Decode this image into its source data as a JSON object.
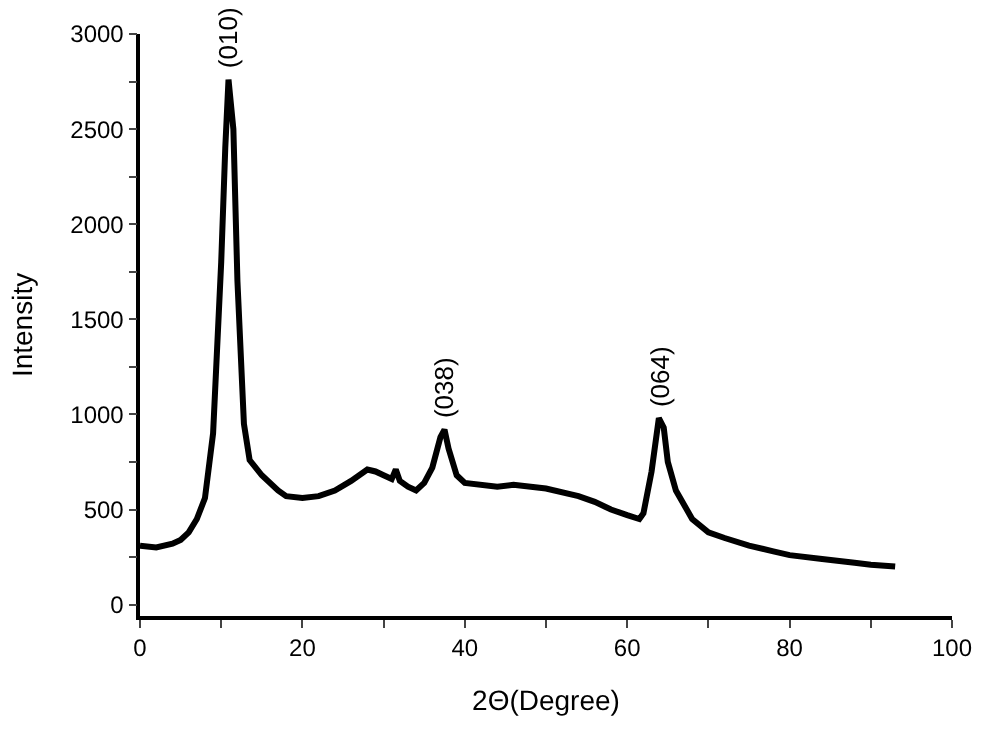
{
  "chart_data": {
    "type": "line",
    "xlabel": "2Θ(Degree)",
    "ylabel": "Intensity",
    "series": [
      {
        "color": "#000000",
        "x": [
          0,
          2,
          4,
          5,
          6,
          7,
          8,
          9,
          10,
          10.5,
          10.9,
          11.5,
          12,
          12.8,
          13.5,
          15,
          17,
          18,
          20,
          22,
          24,
          26,
          28,
          29,
          30,
          31,
          31.5,
          32,
          33,
          34,
          35,
          36,
          37,
          37.5,
          38,
          39,
          40,
          44,
          46,
          50,
          54,
          56,
          58,
          60,
          61.5,
          62,
          63,
          63.9,
          64.5,
          65,
          66,
          68,
          70,
          72,
          75,
          78,
          80,
          84,
          88,
          90,
          93
        ],
        "values": [
          310,
          300,
          320,
          340,
          380,
          450,
          560,
          900,
          1800,
          2400,
          2760,
          2500,
          1700,
          950,
          760,
          680,
          600,
          570,
          560,
          570,
          600,
          650,
          710,
          700,
          680,
          660,
          710,
          650,
          620,
          600,
          640,
          720,
          880,
          920,
          820,
          680,
          640,
          620,
          630,
          610,
          570,
          540,
          500,
          470,
          450,
          480,
          700,
          980,
          930,
          750,
          600,
          450,
          380,
          350,
          310,
          280,
          260,
          240,
          220,
          210,
          200
        ]
      }
    ],
    "annotations": [
      {
        "text": "(010)",
        "x": 10.9,
        "y": 2760
      },
      {
        "text": "(038)",
        "x": 37.5,
        "y": 920
      },
      {
        "text": "(064)",
        "x": 63.9,
        "y": 980
      }
    ],
    "xlim": [
      0,
      100
    ],
    "xticks": [
      0,
      {
        "value": 10,
        "label": null
      },
      20,
      {
        "value": 30,
        "label": null
      },
      40,
      {
        "value": 50,
        "label": null
      },
      60,
      {
        "value": 70,
        "label": null
      },
      80,
      {
        "value": 90,
        "label": null
      },
      100
    ],
    "ylim": [
      -60,
      3000
    ],
    "yticks": [
      0,
      {
        "value": 250,
        "label": null
      },
      500,
      {
        "value": 750,
        "label": null
      },
      1000,
      {
        "value": 1250,
        "label": null
      },
      1500,
      {
        "value": 1750,
        "label": null
      },
      2000,
      {
        "value": 2250,
        "label": null
      },
      2500,
      {
        "value": 2750,
        "label": null
      },
      3000
    ],
    "legend": false,
    "marker": "none",
    "line_style": "solid"
  }
}
